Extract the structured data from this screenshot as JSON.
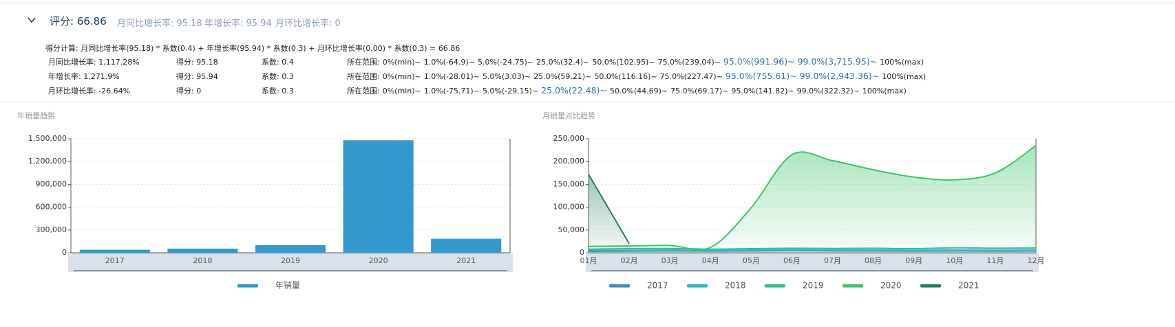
{
  "header": {
    "title": "评分: 66.86",
    "metrics": [
      "月同比增长率: 95.18",
      "年增长率: 95.94",
      "月环比增长率: 0"
    ]
  },
  "formula": "得分计算: 月同比增长率(95.18) * 系数(0.4) + 年增长率(95.94) * 系数(0.3) + 月环比增长率(0.00) * 系数(0.3) = 66.86",
  "rows": [
    {
      "metric": "月同比增长率: 1,117.28%",
      "score": "得分: 95.18",
      "coef": "系数: 0.4",
      "range_label": "所在范围:",
      "range": [
        "0%(min)~",
        "1.0%(-64.9)~",
        "5.0%(-24.75)~",
        "25.0%(32.4)~",
        "50.0%(102.95)~",
        "75.0%(239.04)~",
        "95.0%(991.96)~",
        "99.0%(3,715.95)~",
        "100%(max)"
      ],
      "highlight": [
        6,
        7
      ]
    },
    {
      "metric": "年增长率: 1,271.9%",
      "score": "得分: 95.94",
      "coef": "系数: 0.3",
      "range_label": "所在范围:",
      "range": [
        "0%(min)~",
        "1.0%(-28.01)~",
        "5.0%(3.03)~",
        "25.0%(59.21)~",
        "50.0%(116.16)~",
        "75.0%(227.47)~",
        "95.0%(755.61)~",
        "99.0%(2,943.36)~",
        "100%(max)"
      ],
      "highlight": [
        6,
        7
      ]
    },
    {
      "metric": "月环比增长率: -26.64%",
      "score": "得分: 0",
      "coef": "系数: 0.3",
      "range_label": "所在范围:",
      "range": [
        "0%(min)~",
        "1.0%(-75.71)~",
        "5.0%(-29.15)~",
        "25.0%(22.48)~",
        "50.0%(44.69)~",
        "75.0%(69.17)~",
        "95.0%(141.82)~",
        "99.0%(322.32)~",
        "100%(max)"
      ],
      "highlight": [
        3
      ]
    }
  ],
  "chart_data": [
    {
      "type": "bar",
      "title": "年销量趋势",
      "categories": [
        "2017",
        "2018",
        "2019",
        "2020",
        "2021"
      ],
      "series": [
        {
          "name": "年销量",
          "color": "#3398cc",
          "values": [
            40000,
            55000,
            100000,
            1480000,
            185000
          ]
        }
      ],
      "ylim": [
        0,
        1500000
      ],
      "yticks": [
        0,
        {
          "value": 300000,
          "label": "300,000"
        },
        {
          "value": 600000,
          "label": "600,000"
        },
        {
          "value": 900000,
          "label": "900,000"
        },
        {
          "value": 1200000,
          "label": "1,200,000"
        },
        {
          "value": 1500000,
          "label": "1,500,000"
        }
      ],
      "grid": true
    },
    {
      "type": "line",
      "title": "月销量对比趋势",
      "categories": [
        "01月",
        "02月",
        "03月",
        "04月",
        "05月",
        "06月",
        "07月",
        "08月",
        "09月",
        "10月",
        "11月",
        "12月"
      ],
      "series": [
        {
          "name": "2017",
          "color": "#3a8fc0",
          "values": [
            3000,
            3500,
            4000,
            3500,
            4000,
            4500,
            4000,
            4000,
            3500,
            4000,
            3500,
            4000
          ]
        },
        {
          "name": "2018",
          "color": "#2bb5c8",
          "values": [
            5000,
            5500,
            6000,
            5000,
            6000,
            6500,
            6000,
            6000,
            5500,
            6000,
            5500,
            6000
          ]
        },
        {
          "name": "2019",
          "color": "#2ec090",
          "values": [
            8000,
            9000,
            9500,
            8000,
            9000,
            10000,
            9500,
            10000,
            9000,
            11000,
            10000,
            10500
          ]
        },
        {
          "name": "2020",
          "color": "#3cc46a",
          "area": true,
          "values": [
            14000,
            15000,
            16000,
            12000,
            99000,
            215000,
            202000,
            182000,
            166000,
            160000,
            175000,
            235000
          ]
        },
        {
          "name": "2021",
          "color": "#267a5f",
          "area": true,
          "values": [
            172000,
            20000,
            null,
            null,
            null,
            null,
            null,
            null,
            null,
            null,
            null,
            null
          ]
        }
      ],
      "ylim": [
        0,
        250000
      ],
      "yticks": [
        0,
        {
          "value": 50000,
          "label": "50,000"
        },
        {
          "value": 100000,
          "label": "100,000"
        },
        {
          "value": 150000,
          "label": "150,000"
        },
        {
          "value": 200000,
          "label": "200,000"
        },
        {
          "value": 250000,
          "label": "250,000"
        }
      ],
      "grid": true
    }
  ]
}
